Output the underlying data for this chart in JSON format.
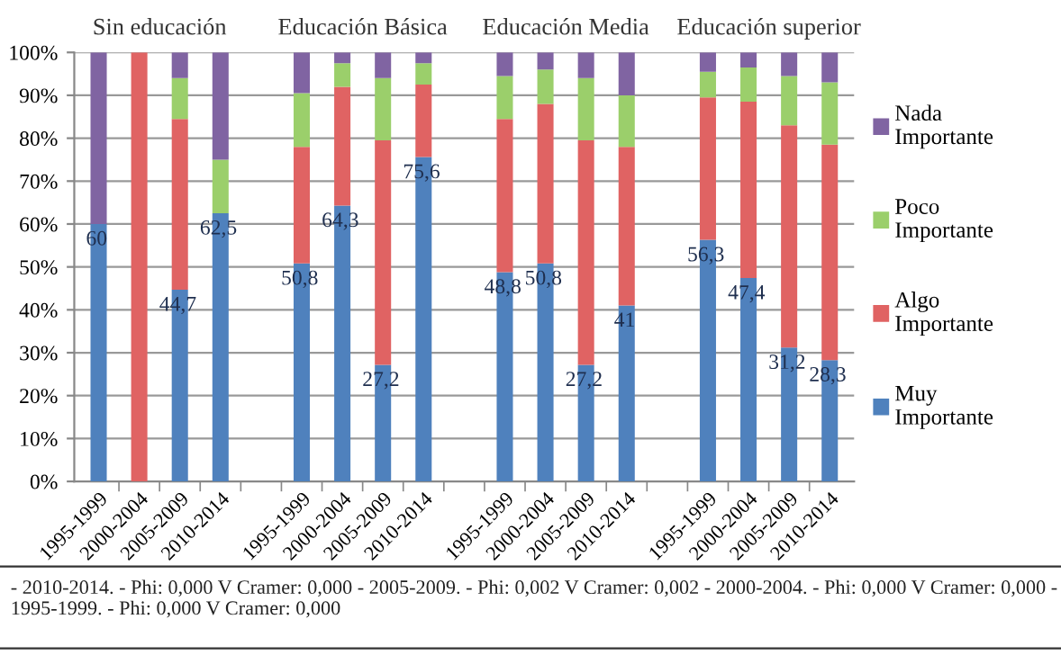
{
  "chart_data": {
    "type": "bar",
    "stacked": true,
    "categories": [
      "1995-1999",
      "2000-2004",
      "2005-2009",
      "2010-2014",
      null,
      "1995-1999",
      "2000-2004",
      "2005-2009",
      "2010-2014",
      null,
      "1995-1999",
      "2000-2004",
      "2005-2009",
      "2010-2014",
      null,
      "1995-1999",
      "2000-2004",
      "2005-2009",
      "2010-2014"
    ],
    "series": [
      {
        "name": "Muy Importante",
        "color": "#4f81bd",
        "values": [
          60,
          0,
          44.7,
          62.5,
          null,
          50.8,
          64.3,
          27.2,
          75.6,
          null,
          48.8,
          50.8,
          27.2,
          41,
          null,
          56.3,
          47.4,
          31.2,
          28.3
        ],
        "value_labels": [
          "60",
          null,
          "44,7",
          "62,5",
          null,
          "50,8",
          "64,3",
          "27,2",
          "75,6",
          null,
          "48,8",
          "50,8",
          "27,2",
          "41",
          null,
          "56,3",
          "47,4",
          "31,2",
          "28,3"
        ]
      },
      {
        "name": "Algo Importante",
        "color": "#e06363",
        "values": [
          0,
          100,
          39.8,
          0,
          null,
          27.2,
          27.7,
          52.3,
          16.9,
          null,
          35.7,
          37.2,
          52.3,
          37,
          null,
          33.2,
          41.1,
          51.8,
          50.2
        ]
      },
      {
        "name": "Poco Importante",
        "color": "#9bcf6b",
        "values": [
          0,
          0,
          9.5,
          12.5,
          null,
          12.5,
          5.5,
          14.5,
          5,
          null,
          10,
          8,
          14.5,
          12,
          null,
          6,
          8,
          11.5,
          14.5
        ]
      },
      {
        "name": "Nada Importante",
        "color": "#8064a2",
        "values": [
          40,
          0,
          6,
          25,
          null,
          9.5,
          2.5,
          6,
          2.5,
          null,
          5.5,
          4,
          6,
          10,
          null,
          4.5,
          3.5,
          5.5,
          7
        ]
      }
    ],
    "ylim": [
      0,
      100
    ],
    "yticks": [
      {
        "value": 0,
        "label": "0%"
      },
      {
        "value": 10,
        "label": "10%"
      },
      {
        "value": 20,
        "label": "20%"
      },
      {
        "value": 30,
        "label": "30%"
      },
      {
        "value": 40,
        "label": "40%"
      },
      {
        "value": 50,
        "label": "50%"
      },
      {
        "value": 60,
        "label": "60%"
      },
      {
        "value": 70,
        "label": "70%"
      },
      {
        "value": 80,
        "label": "80%"
      },
      {
        "value": 90,
        "label": "90%"
      },
      {
        "value": 100,
        "label": "100%"
      }
    ],
    "grid": "y",
    "legend": "right",
    "annotations": [
      "Sin educación",
      "Educación Básica",
      "Educación Media",
      "Educación superior",
      "- 2010-2014. - Phi: 0,000 V Cramer: 0,000 - 2005-2009. - Phi: 0,002 V Cramer: 0,002 - 2000-2004. - Phi: 0,000 V Cramer: 0,000 - 1995-1999. - Phi: 0,000 V Cramer: 0,000"
    ]
  }
}
